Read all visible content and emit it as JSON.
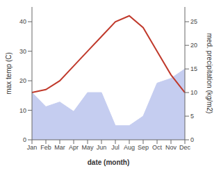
{
  "chart_data": {
    "type": "line",
    "xlabel": "date (month)",
    "ylabel": "max temp (C)",
    "y2label": "med. precipitation (kg/m2)",
    "categories": [
      "Jan",
      "Feb",
      "Mar",
      "Apr",
      "May",
      "Jun",
      "Jul",
      "Aug",
      "Sep",
      "Oct",
      "Nov",
      "Dec"
    ],
    "series": [
      {
        "type": "area",
        "axis": "y2",
        "color": "#c5cdf0",
        "values": [
          10,
          7,
          8,
          6,
          10,
          10,
          3,
          3,
          5,
          12,
          13,
          15
        ]
      },
      {
        "type": "line",
        "color": "#c0392b",
        "values": [
          16,
          17,
          20,
          25,
          30,
          35,
          40,
          42,
          38,
          30,
          22,
          16
        ]
      }
    ],
    "ylim": [
      0,
      45
    ],
    "yticks": [
      0,
      10,
      20,
      30,
      40
    ],
    "y2lim": [
      0,
      28.125
    ],
    "y2ticks": [
      0,
      5,
      10,
      15,
      20,
      25
    ],
    "grid": false
  }
}
